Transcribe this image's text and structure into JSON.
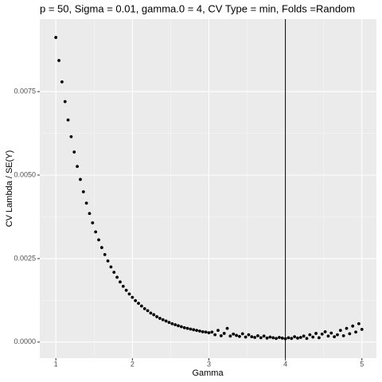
{
  "chart_data": {
    "type": "scatter",
    "title": "p = 50, Sigma = 0.01, gamma.0 = 4, CV Type = min, Folds =Random",
    "x_label": "Gamma",
    "y_label": "CV Lambda / SE(Y)",
    "color": "#000000",
    "grid": true,
    "vline": 4,
    "xlim": [
      0.79,
      5.19
    ],
    "ylim": [
      -0.00048,
      0.00967
    ],
    "xticks": [
      1,
      2,
      3,
      4,
      5
    ],
    "yticks": [
      {
        "value": 0,
        "label": "0.0000"
      },
      {
        "value": 0.0025,
        "label": "0.0025"
      },
      {
        "value": 0.005,
        "label": "0.0050"
      },
      {
        "value": 0.0075,
        "label": "0.0075"
      }
    ],
    "x": [
      1,
      1.04,
      1.08,
      1.12,
      1.16,
      1.2,
      1.24,
      1.28,
      1.32,
      1.36,
      1.4,
      1.44,
      1.48,
      1.52,
      1.56,
      1.6,
      1.64,
      1.68,
      1.72,
      1.76,
      1.8,
      1.84,
      1.88,
      1.92,
      1.96,
      2,
      2.04,
      2.08,
      2.12,
      2.16,
      2.2,
      2.24,
      2.28,
      2.32,
      2.36,
      2.4,
      2.44,
      2.48,
      2.52,
      2.56,
      2.6,
      2.64,
      2.68,
      2.72,
      2.76,
      2.8,
      2.84,
      2.88,
      2.92,
      2.96,
      3,
      3.04,
      3.08,
      3.12,
      3.16,
      3.2,
      3.24,
      3.28,
      3.32,
      3.36,
      3.4,
      3.44,
      3.48,
      3.52,
      3.56,
      3.6,
      3.64,
      3.68,
      3.72,
      3.76,
      3.8,
      3.84,
      3.88,
      3.92,
      3.96,
      4,
      4.04,
      4.08,
      4.12,
      4.16,
      4.2,
      4.24,
      4.28,
      4.32,
      4.36,
      4.4,
      4.44,
      4.48,
      4.52,
      4.56,
      4.6,
      4.64,
      4.68,
      4.72,
      4.76,
      4.8,
      4.84,
      4.88,
      4.92,
      4.96,
      5
    ],
    "values": [
      0.00912,
      0.00843,
      0.00779,
      0.0072,
      0.00665,
      0.00615,
      0.00569,
      0.00526,
      0.00487,
      0.0045,
      0.00416,
      0.00385,
      0.00357,
      0.0033,
      0.00306,
      0.00283,
      0.00262,
      0.00243,
      0.00225,
      0.00209,
      0.00194,
      0.0018,
      0.00167,
      0.00155,
      0.00144,
      0.00134,
      0.00124,
      0.00116,
      0.00108,
      0.001,
      0.00094,
      0.00087,
      0.00082,
      0.00076,
      0.00071,
      0.00067,
      0.00063,
      0.00059,
      0.00055,
      0.00052,
      0.00049,
      0.00046,
      0.00043,
      0.00041,
      0.00039,
      0.00037,
      0.00035,
      0.00033,
      0.00031,
      0.0003,
      0.00028,
      0.0003,
      0.00022,
      0.00035,
      0.00019,
      0.00026,
      0.00041,
      0.00018,
      0.00024,
      0.0002,
      0.00017,
      0.00025,
      0.00015,
      0.00022,
      0.00016,
      0.00014,
      0.00019,
      0.00013,
      0.00018,
      0.00012,
      0.00015,
      0.00013,
      0.00011,
      0.00014,
      0.00012,
      0.0001,
      0.00013,
      0.00011,
      0.00016,
      0.00012,
      0.00014,
      0.00018,
      0.00011,
      0.00022,
      0.00015,
      0.00026,
      0.00013,
      0.00024,
      0.00031,
      0.00018,
      0.00027,
      0.00016,
      0.00022,
      0.00035,
      0.00019,
      0.00041,
      0.00025,
      0.00048,
      0.0003,
      0.00055,
      0.00038
    ]
  }
}
